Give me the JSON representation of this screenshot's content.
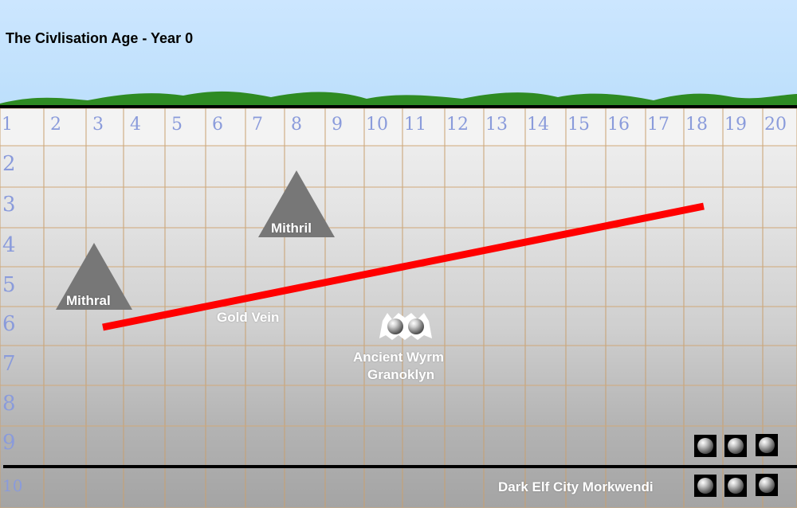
{
  "header": {
    "title": "The Civlisation Age - Year 0"
  },
  "grid": {
    "columns": [
      "1",
      "2",
      "3",
      "4",
      "5",
      "6",
      "7",
      "8",
      "9",
      "10",
      "11",
      "12",
      "13",
      "14",
      "15",
      "16",
      "17",
      "18",
      "19",
      "20"
    ],
    "rows": [
      "2",
      "3",
      "4",
      "5",
      "6",
      "7",
      "8",
      "9",
      "10"
    ]
  },
  "features": {
    "mithral": {
      "label": "Mithral",
      "icon": "mountain-icon"
    },
    "mithril": {
      "label": "Mithril",
      "icon": "mountain-icon"
    },
    "gold_vein": {
      "label": "Gold Vein",
      "color": "#ff0000"
    },
    "wyrm": {
      "line1": "Ancient Wyrm",
      "line2": "Granoklyn",
      "icon": "dragon-icon"
    },
    "city": {
      "label": "Dark Elf City Morkwendi",
      "icon": "city-token-icon"
    }
  },
  "colors": {
    "sky": "#c4e2fc",
    "grass": "#2e8b23",
    "number": "#8a9bdb"
  }
}
